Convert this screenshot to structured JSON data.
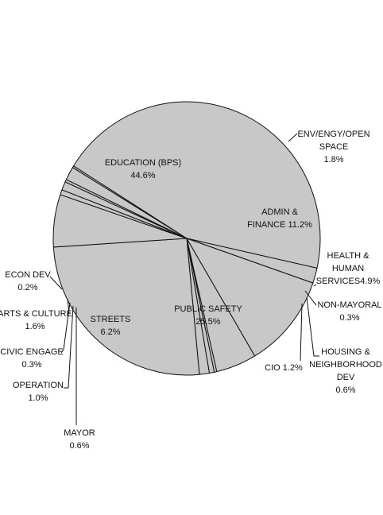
{
  "chart_data": {
    "type": "pie",
    "slices": [
      {
        "label": "EDUCATION (BPS)",
        "value": 44.6,
        "text": "44.6%"
      },
      {
        "label": "ENV/ENGY/OPEN SPACE",
        "value": 1.8,
        "text": "1.8%"
      },
      {
        "label": "ADMIN & FINANCE",
        "value": 11.2,
        "text": "11.2%"
      },
      {
        "label": "HEALTH & HUMAN SERVICES",
        "value": 4.9,
        "text": "4.9%"
      },
      {
        "label": "NON-MAYORAL",
        "value": 0.3,
        "text": "0.3%"
      },
      {
        "label": "HOUSING & NEIGHBORHOOD DEV",
        "value": 0.6,
        "text": "0.6%"
      },
      {
        "label": "CIO",
        "value": 1.2,
        "text": "1.2%"
      },
      {
        "label": "PUBLIC SAFETY",
        "value": 25.5,
        "text": "25.5%"
      },
      {
        "label": "STREETS",
        "value": 6.2,
        "text": "6.2%"
      },
      {
        "label": "MAYOR",
        "value": 0.6,
        "text": "0.6%"
      },
      {
        "label": "OPERATION",
        "value": 1.0,
        "text": "1.0%"
      },
      {
        "label": "CIVIC ENGAGE",
        "value": 0.3,
        "text": "0.3%"
      },
      {
        "label": "ARTS & CULTURE",
        "value": 1.6,
        "text": "1.6%"
      },
      {
        "label": "ECON DEV",
        "value": 0.2,
        "text": "0.2%"
      }
    ],
    "colors": {
      "fill": "#c8c8c8",
      "stroke": "#111111"
    }
  }
}
